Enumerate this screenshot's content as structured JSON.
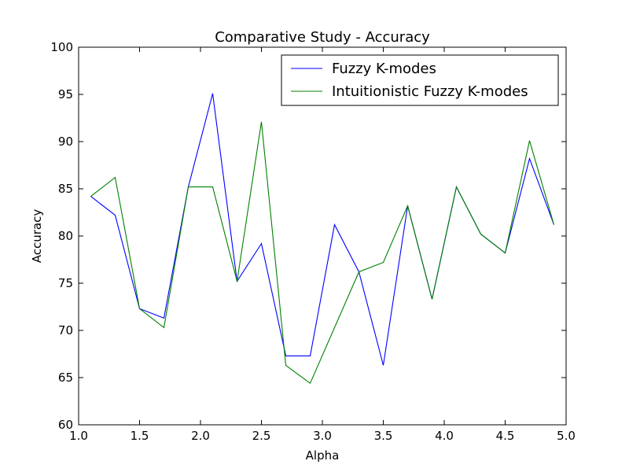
{
  "chart_data": {
    "type": "line",
    "title": "Comparative Study - Accuracy",
    "xlabel": "Alpha",
    "ylabel": "Accuracy",
    "xlim": [
      1.0,
      5.0
    ],
    "ylim": [
      60,
      100
    ],
    "xticks": [
      "1.0",
      "1.5",
      "2.0",
      "2.5",
      "3.0",
      "3.5",
      "4.0",
      "4.5",
      "5.0"
    ],
    "yticks": [
      "60",
      "65",
      "70",
      "75",
      "80",
      "85",
      "90",
      "95",
      "100"
    ],
    "grid": false,
    "legend_position": "top-right",
    "x": [
      1.1,
      1.3,
      1.5,
      1.7,
      1.9,
      2.1,
      2.3,
      2.5,
      2.7,
      2.9,
      3.1,
      3.3,
      3.5,
      3.7,
      3.9,
      4.1,
      4.3,
      4.5,
      4.7,
      4.9
    ],
    "series": [
      {
        "name": "Fuzzy K-modes",
        "color": "#0000ff",
        "values": [
          84.2,
          82.2,
          72.3,
          71.3,
          85.2,
          95.1,
          75.2,
          79.2,
          67.3,
          67.3,
          81.2,
          76.2,
          66.3,
          83.2,
          73.3,
          85.2,
          80.2,
          78.2,
          88.2,
          81.2
        ]
      },
      {
        "name": "Intuitionistic Fuzzy K-modes",
        "color": "#008000",
        "values": [
          84.2,
          86.2,
          72.3,
          70.3,
          85.2,
          85.2,
          75.2,
          92.1,
          66.3,
          64.4,
          70.3,
          76.2,
          77.2,
          83.2,
          73.3,
          85.2,
          80.2,
          78.2,
          90.1,
          81.2
        ]
      }
    ]
  }
}
